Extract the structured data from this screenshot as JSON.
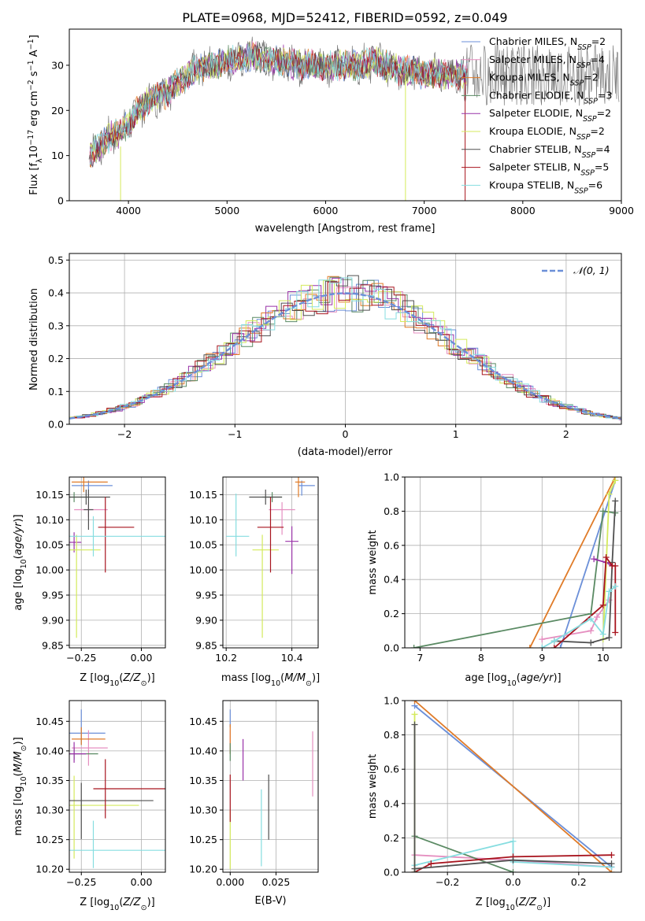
{
  "figure_title": "PLATE=0968, MJD=52412, FIBERID=0592, z=0.049",
  "colors": {
    "Chabrier MILES": "#6b8fd8",
    "Salpeter MILES": "#e58fc0",
    "Kroupa MILES": "#e07b28",
    "Chabrier ELODIE": "#5a8a63",
    "Salpeter ELODIE": "#9932a8",
    "Kroupa ELODIE": "#d4ea5c",
    "Chabrier STELIB": "#505050",
    "Salpeter STELIB": "#a8141e",
    "Kroupa STELIB": "#86dde0",
    "normal": "#6b8fd8"
  },
  "chart_data": [
    {
      "id": "spectrum",
      "type": "line",
      "title": "PLATE=0968, MJD=52412, FIBERID=0592, z=0.049",
      "xlabel": "wavelength [Angstrom, rest frame]",
      "ylabel": "Flux [f_λ10^-17 erg cm^-2 s^-1 A^-1]",
      "xlim": [
        3400,
        9000
      ],
      "ylim": [
        0,
        38
      ],
      "xticks": [
        4000,
        5000,
        6000,
        7000,
        8000,
        9000
      ],
      "yticks": [
        0,
        10,
        20,
        30
      ],
      "grid": false,
      "legend_position": "right",
      "legend": [
        {
          "name": "Chabrier MILES",
          "nssp": "2"
        },
        {
          "name": "Salpeter MILES",
          "nssp": "4"
        },
        {
          "name": "Kroupa MILES",
          "nssp": "2"
        },
        {
          "name": "Chabrier ELODIE",
          "nssp": "3"
        },
        {
          "name": "Salpeter ELODIE",
          "nssp": "2"
        },
        {
          "name": "Kroupa ELODIE",
          "nssp": "2"
        },
        {
          "name": "Chabrier STELIB",
          "nssp": "4"
        },
        {
          "name": "Salpeter STELIB",
          "nssp": "5"
        },
        {
          "name": "Kroupa STELIB",
          "nssp": "6"
        }
      ],
      "continuum": {
        "x": [
          3600,
          3700,
          3800,
          3900,
          4000,
          4100,
          4200,
          4300,
          4400,
          4500,
          4600,
          4700,
          4800,
          4900,
          5000,
          5100,
          5200,
          5300,
          5400,
          5500,
          5600,
          5700,
          5800,
          5900,
          6000,
          6100,
          6200,
          6300,
          6400,
          6500,
          6600,
          6700,
          6800,
          6900,
          7000,
          7100,
          7200,
          7300,
          7400
        ],
        "y": [
          10,
          12,
          14,
          15,
          17,
          20,
          22,
          23,
          24,
          26,
          28,
          29,
          30,
          30,
          31,
          31,
          32,
          32,
          31,
          31,
          31,
          30,
          30,
          30,
          30,
          30,
          30,
          30,
          30,
          31,
          30,
          29,
          29,
          29,
          28,
          28,
          28,
          28,
          28
        ]
      }
    },
    {
      "id": "residuals",
      "type": "line",
      "xlabel": "(data-model)/error",
      "ylabel": "Normed distribution",
      "xlim": [
        -2.5,
        2.5
      ],
      "ylim": [
        0,
        0.52
      ],
      "xticks": [
        -2,
        -1,
        0,
        1,
        2
      ],
      "yticks": [
        0.0,
        0.1,
        0.2,
        0.3,
        0.4,
        0.5
      ],
      "grid": true,
      "legend_position": "top-right",
      "legend": [
        "𝒩(0, 1)"
      ],
      "reference_curve": "normal(0,1)"
    },
    {
      "id": "age_vs_Z",
      "type": "scatter",
      "xlabel": "Z [log10(Z/Z⊙)]",
      "ylabel": "age [log10(age/yr)]",
      "xlim": [
        -0.3,
        0.1
      ],
      "ylim": [
        9.845,
        10.185
      ],
      "xticks": [
        -0.25,
        0.0
      ],
      "yticks": [
        9.85,
        9.9,
        9.95,
        10.0,
        10.05,
        10.1,
        10.15
      ],
      "grid": true,
      "points": [
        {
          "series": "Chabrier MILES",
          "x": -0.22,
          "xerr": [
            0.07,
            0.1
          ],
          "y": 10.168,
          "yerr": [
            0.02,
            0.01
          ]
        },
        {
          "series": "Salpeter MILES",
          "x": -0.22,
          "xerr": [
            0.06,
            0.08
          ],
          "y": 10.12,
          "yerr": [
            0.015,
            0.015
          ]
        },
        {
          "series": "Kroupa MILES",
          "x": -0.24,
          "xerr": [
            0.05,
            0.1
          ],
          "y": 10.175,
          "yerr": [
            0.02,
            0.02
          ]
        },
        {
          "series": "Chabrier ELODIE",
          "x": -0.28,
          "xerr": [
            0.02,
            0.06
          ],
          "y": 10.145,
          "yerr": [
            0.01,
            0.01
          ]
        },
        {
          "series": "Salpeter ELODIE",
          "x": -0.28,
          "xerr": [
            0.02,
            0.03
          ],
          "y": 10.055,
          "yerr": [
            0.02,
            0.02
          ]
        },
        {
          "series": "Kroupa ELODIE",
          "x": -0.27,
          "xerr": [
            0.03,
            0.1
          ],
          "y": 10.04,
          "yerr": [
            0.175,
            0.03
          ]
        },
        {
          "series": "Chabrier STELIB",
          "x": -0.23,
          "xerr": [
            0.07,
            0.1
          ],
          "y": 10.145,
          "yerr": [
            0.015,
            0.015
          ]
        },
        {
          "series": "Salpeter STELIB",
          "x": -0.15,
          "xerr": [
            0.03,
            0.12
          ],
          "y": 10.085,
          "yerr": [
            0.09,
            0.06
          ]
        },
        {
          "series": "Kroupa STELIB",
          "x": -0.2,
          "xerr": [
            0.1,
            0.3
          ],
          "y": 10.067,
          "yerr": [
            0.04,
            0.04
          ]
        },
        {
          "series": "Chabrier STELIB",
          "x": -0.22,
          "xerr": [
            0.02,
            0.02
          ],
          "y": 10.12,
          "yerr": [
            0.04,
            0.04
          ]
        }
      ]
    },
    {
      "id": "age_vs_mass",
      "type": "scatter",
      "xlabel": "mass [log10(M/M⊙)]",
      "ylabel": "",
      "xlim": [
        10.19,
        10.48
      ],
      "ylim": [
        9.845,
        10.185
      ],
      "xticks": [
        10.2,
        10.4
      ],
      "yticks": [
        9.85,
        9.9,
        9.95,
        10.0,
        10.05,
        10.1,
        10.15
      ],
      "grid": true,
      "points": [
        {
          "series": "Chabrier MILES",
          "x": 10.43,
          "xerr": [
            0.01,
            0.04
          ],
          "y": 10.168,
          "yerr": [
            0.02,
            0.01
          ]
        },
        {
          "series": "Salpeter MILES",
          "x": 10.37,
          "xerr": [
            0.04,
            0.04
          ],
          "y": 10.12,
          "yerr": [
            0.05,
            0.015
          ]
        },
        {
          "series": "Kroupa MILES",
          "x": 10.42,
          "xerr": [
            0.01,
            0.02
          ],
          "y": 10.175,
          "yerr": [
            0.03,
            0.01
          ]
        },
        {
          "series": "Chabrier ELODIE",
          "x": 10.34,
          "xerr": [
            0.03,
            0.03
          ],
          "y": 10.145,
          "yerr": [
            0.01,
            0.01
          ]
        },
        {
          "series": "Salpeter ELODIE",
          "x": 10.4,
          "xerr": [
            0.02,
            0.02
          ],
          "y": 10.057,
          "yerr": [
            0.065,
            0.03
          ]
        },
        {
          "series": "Kroupa ELODIE",
          "x": 10.31,
          "xerr": [
            0.03,
            0.05
          ],
          "y": 10.04,
          "yerr": [
            0.175,
            0.03
          ]
        },
        {
          "series": "Chabrier STELIB",
          "x": 10.32,
          "xerr": [
            0.05,
            0.05
          ],
          "y": 10.145,
          "yerr": [
            0.015,
            0.015
          ]
        },
        {
          "series": "Salpeter STELIB",
          "x": 10.335,
          "xerr": [
            0.04,
            0.04
          ],
          "y": 10.085,
          "yerr": [
            0.09,
            0.06
          ]
        },
        {
          "series": "Kroupa STELIB",
          "x": 10.23,
          "xerr": [
            0.03,
            0.04
          ],
          "y": 10.067,
          "yerr": [
            0.04,
            0.085
          ]
        }
      ]
    },
    {
      "id": "weight_vs_age",
      "type": "line",
      "xlabel": "age [log10(age/yr)]",
      "ylabel": "mass weight",
      "xlim": [
        6.75,
        10.3
      ],
      "ylim": [
        0,
        1
      ],
      "xticks": [
        7,
        8,
        9,
        10
      ],
      "yticks": [
        0.0,
        0.2,
        0.4,
        0.6,
        0.8,
        1.0
      ],
      "grid": true,
      "series": [
        {
          "name": "Chabrier MILES",
          "x": [
            9.3,
            10.2
          ],
          "y": [
            0.0,
            0.98
          ]
        },
        {
          "name": "Salpeter MILES",
          "x": [
            9.0,
            9.8,
            9.9,
            10.1
          ],
          "y": [
            0.05,
            0.1,
            0.18,
            0.28
          ]
        },
        {
          "name": "Kroupa MILES",
          "x": [
            8.8,
            10.2
          ],
          "y": [
            0.0,
            1.0
          ]
        },
        {
          "name": "Chabrier ELODIE",
          "x": [
            6.9,
            9.8,
            10.0,
            10.2
          ],
          "y": [
            0.0,
            0.2,
            0.8,
            0.79
          ]
        },
        {
          "name": "Salpeter ELODIE",
          "x": [
            9.85,
            10.05,
            10.15
          ],
          "y": [
            0.52,
            0.5,
            0.48
          ]
        },
        {
          "name": "Kroupa ELODIE",
          "x": [
            10.0,
            10.1,
            10.2
          ],
          "y": [
            0.05,
            0.9,
            0.98
          ]
        },
        {
          "name": "Chabrier STELIB",
          "x": [
            9.2,
            9.8,
            10.1,
            10.15,
            10.2
          ],
          "y": [
            0.04,
            0.03,
            0.06,
            0.5,
            0.86
          ]
        },
        {
          "name": "Salpeter STELIB",
          "x": [
            9.2,
            10.0,
            10.05,
            10.15,
            10.2,
            10.2
          ],
          "y": [
            0.0,
            0.25,
            0.53,
            0.48,
            0.48,
            0.09
          ]
        },
        {
          "name": "Kroupa STELIB",
          "x": [
            9.0,
            9.2,
            9.8,
            10.0,
            10.1,
            10.2
          ],
          "y": [
            0.0,
            0.04,
            0.17,
            0.08,
            0.33,
            0.36
          ]
        }
      ]
    },
    {
      "id": "mass_vs_Z",
      "type": "scatter",
      "xlabel": "Z [log10(Z/Z⊙)]",
      "ylabel": "mass [log10(M/M⊙)]",
      "xlim": [
        -0.3,
        0.1
      ],
      "ylim": [
        10.195,
        10.485
      ],
      "xticks": [
        -0.25,
        0.0
      ],
      "yticks": [
        10.2,
        10.25,
        10.3,
        10.35,
        10.4,
        10.45
      ],
      "grid": true,
      "points": [
        {
          "series": "Chabrier MILES",
          "x": -0.25,
          "xerr": [
            0.05,
            0.1
          ],
          "y": 10.43,
          "yerr": [
            0.02,
            0.04
          ]
        },
        {
          "series": "Salpeter MILES",
          "x": -0.22,
          "xerr": [
            0.07,
            0.08
          ],
          "y": 10.405,
          "yerr": [
            0.03,
            0.03
          ]
        },
        {
          "series": "Kroupa MILES",
          "x": -0.25,
          "xerr": [
            0.04,
            0.1
          ],
          "y": 10.42,
          "yerr": [
            0.01,
            0.02
          ]
        },
        {
          "series": "Chabrier ELODIE",
          "x": -0.28,
          "xerr": [
            0.02,
            0.1
          ],
          "y": 10.395,
          "yerr": [
            0.01,
            0.01
          ]
        },
        {
          "series": "Salpeter ELODIE",
          "x": -0.28,
          "xerr": [
            0.02,
            0.05
          ],
          "y": 10.395,
          "yerr": [
            0.015,
            0.02
          ]
        },
        {
          "series": "Kroupa ELODIE",
          "x": -0.28,
          "xerr": [
            0.02,
            0.27
          ],
          "y": 10.308,
          "yerr": [
            0.09,
            0.05
          ]
        },
        {
          "series": "Chabrier STELIB",
          "x": -0.25,
          "xerr": [
            0.05,
            0.3
          ],
          "y": 10.316,
          "yerr": [
            0.065,
            0.03
          ]
        },
        {
          "series": "Salpeter STELIB",
          "x": -0.15,
          "xerr": [
            0.05,
            0.25
          ],
          "y": 10.336,
          "yerr": [
            0.05,
            0.05
          ]
        },
        {
          "series": "Kroupa STELIB",
          "x": -0.2,
          "xerr": [
            0.1,
            0.3
          ],
          "y": 10.232,
          "yerr": [
            0.03,
            0.05
          ]
        }
      ]
    },
    {
      "id": "mass_vs_ebv",
      "type": "scatter",
      "xlabel": "E(B-V)",
      "ylabel": "",
      "xlim": [
        -0.004,
        0.048
      ],
      "ylim": [
        10.195,
        10.485
      ],
      "xticks": [
        0.0,
        0.025
      ],
      "yticks": [
        10.2,
        10.25,
        10.3,
        10.35,
        10.4,
        10.45
      ],
      "grid": true,
      "points": [
        {
          "series": "Chabrier MILES",
          "x": 0.0,
          "y": 10.455,
          "yerr": [
            0.015,
            0.015
          ]
        },
        {
          "series": "Salpeter MILES",
          "x": 0.0,
          "y": 10.415,
          "yerr": [
            0.02,
            0.02
          ]
        },
        {
          "series": "Kroupa MILES",
          "x": 0.0,
          "y": 10.425,
          "yerr": [
            0.03,
            0.02
          ]
        },
        {
          "series": "Chabrier ELODIE",
          "x": 0.0,
          "y": 10.398,
          "yerr": [
            0.015,
            0.015
          ]
        },
        {
          "series": "Salpeter ELODIE",
          "x": 0.007,
          "y": 10.385,
          "yerr": [
            0.035,
            0.035
          ]
        },
        {
          "series": "Kroupa ELODIE",
          "x": 0.0,
          "y": 10.25,
          "yerr": [
            0.05,
            0.05
          ]
        },
        {
          "series": "Chabrier STELIB",
          "x": 0.021,
          "y": 10.305,
          "yerr": [
            0.055,
            0.055
          ]
        },
        {
          "series": "Salpeter STELIB",
          "x": 0.0,
          "y": 10.32,
          "yerr": [
            0.04,
            0.04
          ]
        },
        {
          "series": "Kroupa STELIB",
          "x": 0.017,
          "y": 10.27,
          "yerr": [
            0.065,
            0.065
          ]
        },
        {
          "series": "Salpeter MILES",
          "x": 0.045,
          "y": 10.378,
          "yerr": [
            0.055,
            0.055
          ]
        }
      ]
    },
    {
      "id": "weight_vs_Z",
      "type": "line",
      "xlabel": "Z [log10(Z/Z⊙)]",
      "ylabel": "mass weight",
      "xlim": [
        -0.33,
        0.33
      ],
      "ylim": [
        0,
        1
      ],
      "xticks": [
        -0.2,
        0.0,
        0.2
      ],
      "yticks": [
        0.0,
        0.2,
        0.4,
        0.6,
        0.8,
        1.0
      ],
      "grid": true,
      "series": [
        {
          "name": "Chabrier MILES",
          "x": [
            -0.3,
            0.3
          ],
          "y": [
            0.97,
            0.03
          ]
        },
        {
          "name": "Kroupa MILES",
          "x": [
            -0.3,
            0.3
          ],
          "y": [
            1.0,
            0.0
          ]
        },
        {
          "name": "Salpeter MILES",
          "x": [
            -0.3,
            0.0,
            0.3
          ],
          "y": [
            0.1,
            0.07,
            0.03
          ]
        },
        {
          "name": "Chabrier ELODIE",
          "x": [
            -0.3,
            0.0
          ],
          "y": [
            0.21,
            0.0
          ]
        },
        {
          "name": "Kroupa STELIB",
          "x": [
            -0.3,
            0.0,
            0.0,
            0.3
          ],
          "y": [
            0.04,
            0.18,
            0.06,
            0.03
          ]
        },
        {
          "name": "Salpeter STELIB",
          "x": [
            -0.3,
            -0.25,
            0.0,
            0.3
          ],
          "y": [
            0.0,
            0.05,
            0.09,
            0.1
          ]
        },
        {
          "name": "Chabrier STELIB",
          "x": [
            -0.3,
            0.0,
            0.3
          ],
          "y": [
            0.02,
            0.07,
            0.05
          ]
        },
        {
          "name": "Kroupa ELODIE",
          "x": [
            -0.3,
            -0.3
          ],
          "y": [
            0.0,
            0.92
          ]
        },
        {
          "name": "Chabrier STELIB",
          "x": [
            -0.3,
            -0.3
          ],
          "y": [
            0.0,
            0.86
          ]
        }
      ]
    }
  ]
}
